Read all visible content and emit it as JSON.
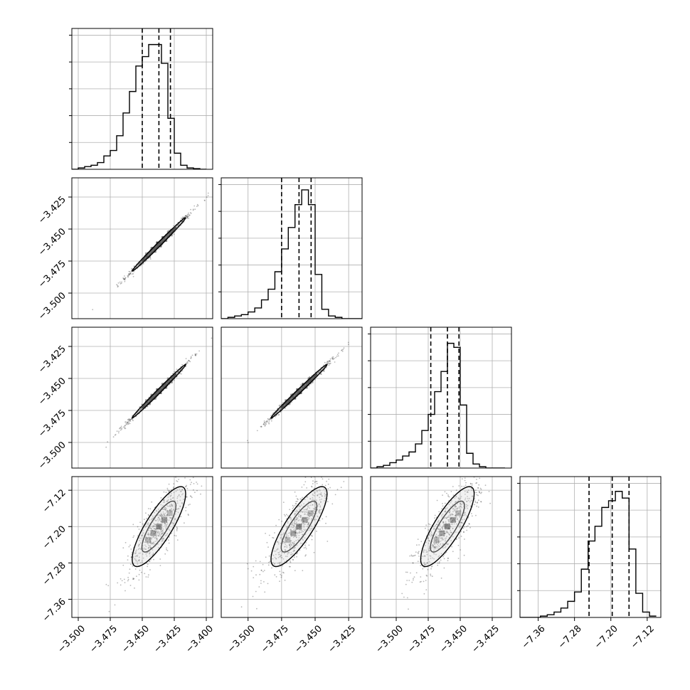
{
  "chart_data": {
    "type": "corner",
    "title": "",
    "panels": [
      {
        "kind": "hist",
        "row": 0,
        "col": 0,
        "param": 0,
        "xlim": [
          -3.505,
          -3.395
        ],
        "bins": [
          {
            "start": -3.505,
            "count": 0
          },
          {
            "start": -3.5,
            "count": 0.01
          },
          {
            "start": -3.495,
            "count": 0.02
          },
          {
            "start": -3.49,
            "count": 0.03
          },
          {
            "start": -3.485,
            "count": 0.05
          },
          {
            "start": -3.48,
            "count": 0.1
          },
          {
            "start": -3.475,
            "count": 0.14
          },
          {
            "start": -3.47,
            "count": 0.25
          },
          {
            "start": -3.465,
            "count": 0.42
          },
          {
            "start": -3.46,
            "count": 0.58
          },
          {
            "start": -3.455,
            "count": 0.77
          },
          {
            "start": -3.45,
            "count": 0.84
          },
          {
            "start": -3.445,
            "count": 0.93
          },
          {
            "start": -3.44,
            "count": 0.93
          },
          {
            "start": -3.435,
            "count": 0.79
          },
          {
            "start": -3.43,
            "count": 0.38
          },
          {
            "start": -3.425,
            "count": 0.12
          },
          {
            "start": -3.42,
            "count": 0.03
          },
          {
            "start": -3.415,
            "count": 0.01
          },
          {
            "start": -3.41,
            "count": 0.005
          },
          {
            "start": -3.405,
            "count": 0
          }
        ],
        "quantiles": [
          -3.45,
          -3.437,
          -3.428
        ]
      },
      {
        "kind": "hist",
        "row": 1,
        "col": 1,
        "param": 1,
        "xlim": [
          -3.52,
          -3.415
        ],
        "bins": [
          {
            "start": -3.52,
            "count": 0
          },
          {
            "start": -3.515,
            "count": 0.01
          },
          {
            "start": -3.51,
            "count": 0.02
          },
          {
            "start": -3.505,
            "count": 0.03
          },
          {
            "start": -3.5,
            "count": 0.05
          },
          {
            "start": -3.495,
            "count": 0.08
          },
          {
            "start": -3.49,
            "count": 0.14
          },
          {
            "start": -3.485,
            "count": 0.22
          },
          {
            "start": -3.48,
            "count": 0.35
          },
          {
            "start": -3.475,
            "count": 0.52
          },
          {
            "start": -3.47,
            "count": 0.68
          },
          {
            "start": -3.465,
            "count": 0.85
          },
          {
            "start": -3.46,
            "count": 0.96
          },
          {
            "start": -3.455,
            "count": 0.85
          },
          {
            "start": -3.45,
            "count": 0.33
          },
          {
            "start": -3.445,
            "count": 0.07
          },
          {
            "start": -3.44,
            "count": 0.02
          },
          {
            "start": -3.435,
            "count": 0.01
          },
          {
            "start": -3.43,
            "count": 0
          },
          {
            "start": -3.425,
            "count": 0
          },
          {
            "start": -3.42,
            "count": 0
          }
        ],
        "quantiles": [
          -3.475,
          -3.462,
          -3.453
        ]
      },
      {
        "kind": "hist",
        "row": 2,
        "col": 2,
        "param": 2,
        "xlim": [
          -3.52,
          -3.41
        ],
        "bins": [
          {
            "start": -3.52,
            "count": 0
          },
          {
            "start": -3.515,
            "count": 0.01
          },
          {
            "start": -3.51,
            "count": 0.02
          },
          {
            "start": -3.505,
            "count": 0.04
          },
          {
            "start": -3.5,
            "count": 0.06
          },
          {
            "start": -3.495,
            "count": 0.09
          },
          {
            "start": -3.49,
            "count": 0.12
          },
          {
            "start": -3.485,
            "count": 0.18
          },
          {
            "start": -3.48,
            "count": 0.28
          },
          {
            "start": -3.475,
            "count": 0.4
          },
          {
            "start": -3.47,
            "count": 0.57
          },
          {
            "start": -3.465,
            "count": 0.72
          },
          {
            "start": -3.46,
            "count": 0.93
          },
          {
            "start": -3.455,
            "count": 0.9
          },
          {
            "start": -3.45,
            "count": 0.47
          },
          {
            "start": -3.445,
            "count": 0.11
          },
          {
            "start": -3.44,
            "count": 0.03
          },
          {
            "start": -3.435,
            "count": 0.01
          },
          {
            "start": -3.43,
            "count": 0
          },
          {
            "start": -3.425,
            "count": 0
          },
          {
            "start": -3.42,
            "count": 0
          }
        ],
        "quantiles": [
          -3.473,
          -3.46,
          -3.451
        ]
      },
      {
        "kind": "hist",
        "row": 3,
        "col": 3,
        "param": 3,
        "xlim": [
          -7.4,
          -7.09
        ],
        "bins": [
          {
            "start": -7.4,
            "count": 0
          },
          {
            "start": -7.385,
            "count": 0
          },
          {
            "start": -7.37,
            "count": 0
          },
          {
            "start": -7.355,
            "count": 0.01
          },
          {
            "start": -7.34,
            "count": 0.02
          },
          {
            "start": -7.325,
            "count": 0.04
          },
          {
            "start": -7.31,
            "count": 0.07
          },
          {
            "start": -7.295,
            "count": 0.12
          },
          {
            "start": -7.28,
            "count": 0.19
          },
          {
            "start": -7.265,
            "count": 0.36
          },
          {
            "start": -7.25,
            "count": 0.57
          },
          {
            "start": -7.235,
            "count": 0.68
          },
          {
            "start": -7.22,
            "count": 0.82
          },
          {
            "start": -7.205,
            "count": 0.87
          },
          {
            "start": -7.19,
            "count": 0.94
          },
          {
            "start": -7.175,
            "count": 0.89
          },
          {
            "start": -7.16,
            "count": 0.51
          },
          {
            "start": -7.145,
            "count": 0.18
          },
          {
            "start": -7.13,
            "count": 0.04
          },
          {
            "start": -7.115,
            "count": 0.01
          }
        ],
        "quantiles": [
          -7.248,
          -7.197,
          -7.16
        ]
      },
      {
        "kind": "2d",
        "row": 1,
        "col": 0,
        "xparam": 0,
        "yparam": 1,
        "xlim": [
          -3.505,
          -3.395
        ],
        "ylim": [
          -3.52,
          -3.41
        ]
      },
      {
        "kind": "2d",
        "row": 2,
        "col": 0,
        "xparam": 0,
        "yparam": 2,
        "xlim": [
          -3.505,
          -3.395
        ],
        "ylim": [
          -3.52,
          -3.41
        ]
      },
      {
        "kind": "2d",
        "row": 2,
        "col": 1,
        "xparam": 1,
        "yparam": 2,
        "xlim": [
          -3.52,
          -3.415
        ],
        "ylim": [
          -3.52,
          -3.41
        ]
      },
      {
        "kind": "2d",
        "row": 3,
        "col": 0,
        "xparam": 0,
        "yparam": 3,
        "xlim": [
          -3.505,
          -3.395
        ],
        "ylim": [
          -7.4,
          -7.09
        ]
      },
      {
        "kind": "2d",
        "row": 3,
        "col": 1,
        "xparam": 1,
        "yparam": 3,
        "xlim": [
          -3.52,
          -3.415
        ],
        "ylim": [
          -7.4,
          -7.09
        ]
      },
      {
        "kind": "2d",
        "row": 3,
        "col": 2,
        "xparam": 2,
        "yparam": 3,
        "xlim": [
          -3.52,
          -3.41
        ],
        "ylim": [
          -7.4,
          -7.09
        ]
      }
    ],
    "params": [
      {
        "mean": -3.437,
        "sd": 0.0095
      },
      {
        "mean": -3.462,
        "sd": 0.0095
      },
      {
        "mean": -3.46,
        "sd": 0.0095
      },
      {
        "mean": -7.2,
        "sd": 0.04
      }
    ],
    "axes": {
      "bottom": [
        {
          "col": 0,
          "ticks": [
            -3.5,
            -3.475,
            -3.45,
            -3.425,
            -3.4
          ],
          "labels": [
            "−3.500",
            "−3.475",
            "−3.450",
            "−3.425",
            "−3.400"
          ]
        },
        {
          "col": 1,
          "ticks": [
            -3.5,
            -3.475,
            -3.45,
            -3.425
          ],
          "labels": [
            "−3.500",
            "−3.475",
            "−3.450",
            "−3.425"
          ]
        },
        {
          "col": 2,
          "ticks": [
            -3.5,
            -3.475,
            -3.45,
            -3.425
          ],
          "labels": [
            "−3.500",
            "−3.475",
            "−3.450",
            "−3.425"
          ]
        },
        {
          "col": 3,
          "ticks": [
            -7.36,
            -7.28,
            -7.2,
            -7.12
          ],
          "labels": [
            "−7.36",
            "−7.28",
            "−7.20",
            "−7.12"
          ]
        }
      ],
      "left": [
        {
          "row": 1,
          "ticks": [
            -3.425,
            -3.45,
            -3.475,
            -3.5
          ],
          "labels": [
            "−3.425",
            "−3.450",
            "−3.475",
            "−3.500"
          ]
        },
        {
          "row": 2,
          "ticks": [
            -3.425,
            -3.45,
            -3.475,
            -3.5
          ],
          "labels": [
            "−3.425",
            "−3.450",
            "−3.475",
            "−3.500"
          ]
        },
        {
          "row": 3,
          "ticks": [
            -7.12,
            -7.2,
            -7.28,
            -7.36
          ],
          "labels": [
            "−7.12",
            "−7.20",
            "−7.28",
            "−7.36"
          ]
        }
      ]
    },
    "grid": true,
    "colors": {
      "hist": "#000000",
      "grid": "#b0b0b0",
      "scatter": "#000000",
      "contour": "#000000"
    }
  }
}
